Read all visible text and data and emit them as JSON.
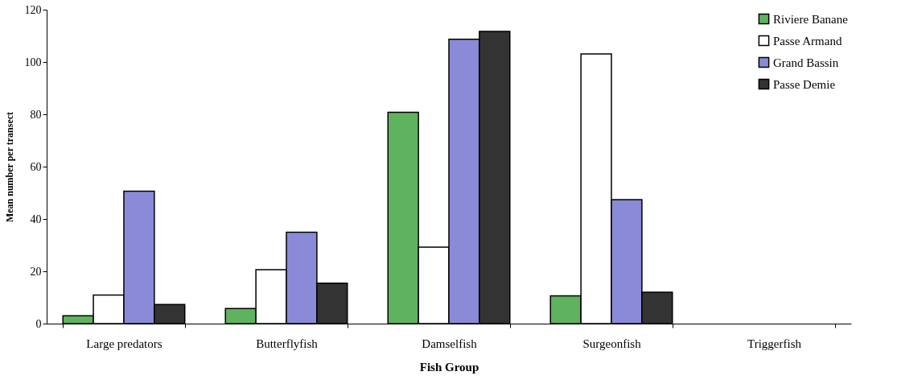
{
  "chart_data": {
    "type": "bar",
    "xlabel": "Fish Group",
    "ylabel": "Mean number per transect",
    "categories": [
      "Large predators",
      "Butterflyfish",
      "Damselfish",
      "Surgeonfish",
      "Triggerfish"
    ],
    "series": [
      {
        "name": "Riviere Banane",
        "color": "#5fb35f",
        "values": [
          3.0,
          5.8,
          80.8,
          10.6,
          0
        ]
      },
      {
        "name": "Passe Armand",
        "color": "#ffffff",
        "values": [
          10.9,
          20.6,
          29.2,
          103.1,
          0
        ]
      },
      {
        "name": "Grand Bassin",
        "color": "#8a8ad8",
        "values": [
          50.6,
          34.9,
          108.7,
          47.4,
          0
        ]
      },
      {
        "name": "Passe Demie",
        "color": "#333333",
        "values": [
          7.3,
          15.5,
          111.7,
          12.0,
          0
        ]
      }
    ],
    "ylim": [
      0,
      120
    ],
    "yticks": [
      0,
      20,
      40,
      60,
      80,
      100,
      120
    ],
    "grid": false,
    "legend": "top right"
  }
}
